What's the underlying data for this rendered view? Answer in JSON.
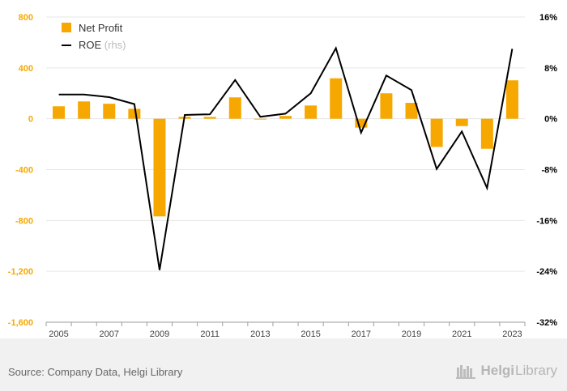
{
  "chart_data": {
    "type": "bar+line",
    "categories": [
      "2005",
      "2006",
      "2007",
      "2008",
      "2009",
      "2010",
      "2011",
      "2012",
      "2013",
      "2014",
      "2015",
      "2016",
      "2017",
      "2018",
      "2019",
      "2020",
      "2021",
      "2022",
      "2023"
    ],
    "x_tick_labels": [
      "2005",
      "2007",
      "2009",
      "2011",
      "2013",
      "2015",
      "2017",
      "2019",
      "2021",
      "2023"
    ],
    "series": [
      {
        "name": "Net Profit",
        "type": "bar",
        "axis": "left",
        "color": "#f7a800",
        "values": [
          98,
          136,
          118,
          78,
          -768,
          15,
          14,
          168,
          -6,
          22,
          104,
          318,
          -70,
          200,
          125,
          -222,
          -58,
          -236,
          302
        ]
      },
      {
        "name": "ROE",
        "name_suffix": "(rhs)",
        "type": "line",
        "axis": "right",
        "color": "#000000",
        "values": [
          3.8,
          3.8,
          3.4,
          2.3,
          -23.8,
          0.6,
          0.7,
          6.1,
          0.3,
          0.8,
          4.0,
          11.1,
          -2.2,
          6.8,
          4.5,
          -7.9,
          -2.0,
          -10.9,
          11.0
        ]
      }
    ],
    "y_left": {
      "ticks": [
        800,
        400,
        0,
        -400,
        -800,
        -1200,
        -1600
      ],
      "tick_labels": [
        "800",
        "400",
        "0",
        "-400",
        "-800",
        "-1,200",
        "-1,600"
      ],
      "range": [
        -1600,
        800
      ],
      "color": "#f7a800"
    },
    "y_right": {
      "ticks": [
        16,
        8,
        0,
        -8,
        -16,
        -24,
        -32
      ],
      "tick_labels": [
        "16%",
        "8%",
        "0%",
        "-8%",
        "-16%",
        "-24%",
        "-32%"
      ],
      "range": [
        -32,
        16
      ],
      "color": "#000000"
    },
    "grid": true,
    "legend_position": "top-left"
  },
  "footer": {
    "source": "Source: Company Data, Helgi Library",
    "brand_bold": "Helgi",
    "brand_light": "Library"
  },
  "colors": {
    "axis_gray": "#9e9e9e",
    "grid": "#e6e6e6",
    "footer_bg": "#f1f1f1"
  }
}
